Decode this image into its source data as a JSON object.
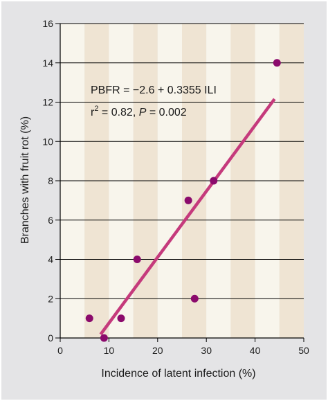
{
  "chart_data": {
    "type": "scatter",
    "xlabel": "Incidence of latent infection (%)",
    "ylabel": "Branches with fruit rot (%)",
    "xlim": [
      0,
      50
    ],
    "ylim": [
      0,
      16
    ],
    "xticks": [
      0,
      10,
      20,
      30,
      40,
      50
    ],
    "yticks": [
      0,
      2,
      4,
      6,
      8,
      10,
      12,
      14,
      16
    ],
    "grid": "horizontal lines at each y tick",
    "points": [
      {
        "x": 6,
        "y": 1
      },
      {
        "x": 9,
        "y": 0
      },
      {
        "x": 12.5,
        "y": 1
      },
      {
        "x": 15.8,
        "y": 4
      },
      {
        "x": 26.3,
        "y": 7
      },
      {
        "x": 27.6,
        "y": 2
      },
      {
        "x": 31.5,
        "y": 8
      },
      {
        "x": 44.5,
        "y": 14
      }
    ],
    "fit_line": {
      "intercept": -2.6,
      "slope": 0.3355,
      "x_start": 8.3,
      "x_end": 44.0
    },
    "annotations": {
      "equation": "PBFR = −2.6 + 0.3355 ILI",
      "r2_label": "r",
      "r2_sup": "2",
      "r2_value": " = 0.82, ",
      "p_label": "P",
      "p_value": " = 0.002"
    },
    "colors": {
      "frame": "#e4e4e6",
      "band_light": "#f8f5ec",
      "band_dark": "#efe4d3",
      "grid": "#000000",
      "point": "#8b0a6c",
      "line": "#c53a7c"
    }
  }
}
